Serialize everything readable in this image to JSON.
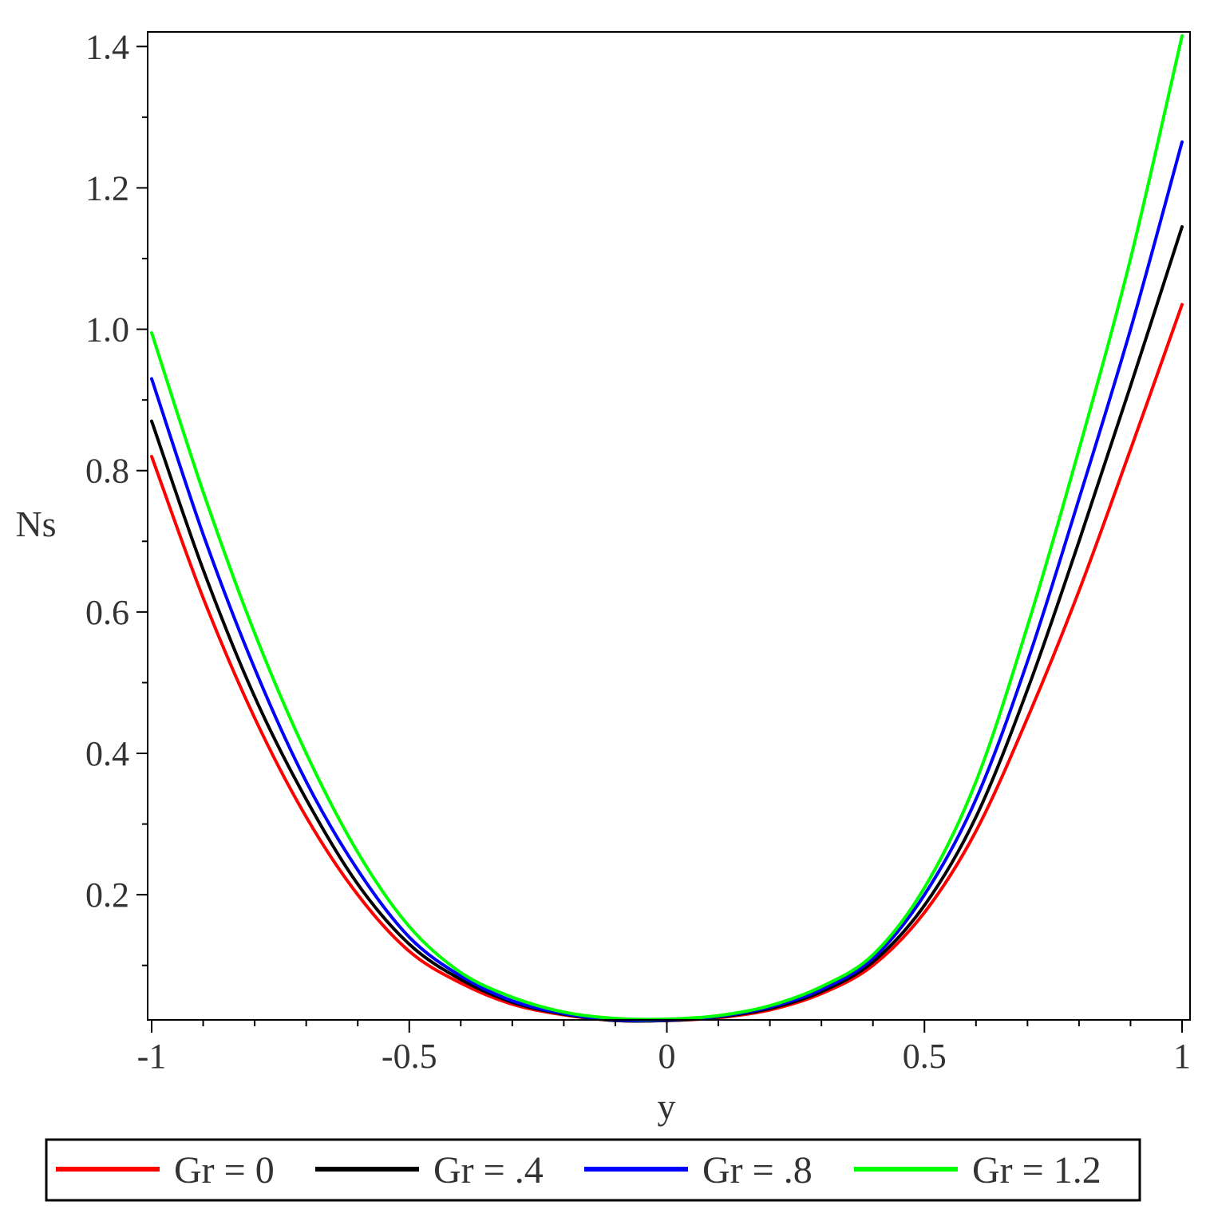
{
  "chart_data": {
    "type": "line",
    "title": "",
    "xlabel": "y",
    "ylabel": "Ns",
    "xlim": [
      -1,
      1
    ],
    "ylim": [
      0.015,
      1.415
    ],
    "grid": false,
    "legend_position": "bottom",
    "x_ticks": [
      {
        "value": -1,
        "label": "-1"
      },
      {
        "value": -0.5,
        "label": "-0.5"
      },
      {
        "value": 0,
        "label": "0"
      },
      {
        "value": 0.5,
        "label": "0.5"
      },
      {
        "value": 1,
        "label": "1"
      }
    ],
    "y_ticks": [
      {
        "value": 0.2,
        "label": "0.2"
      },
      {
        "value": 0.4,
        "label": "0.4"
      },
      {
        "value": 0.6,
        "label": "0.6"
      },
      {
        "value": 0.8,
        "label": "0.8"
      },
      {
        "value": 1.0,
        "label": "1.0"
      },
      {
        "value": 1.2,
        "label": "1.2"
      },
      {
        "value": 1.4,
        "label": "1.4"
      }
    ],
    "x": [
      -1.0,
      -0.9,
      -0.8,
      -0.7,
      -0.6,
      -0.5,
      -0.4,
      -0.3,
      -0.2,
      -0.1,
      0.0,
      0.1,
      0.2,
      0.3,
      0.4,
      0.5,
      0.6,
      0.7,
      0.8,
      0.9,
      1.0
    ],
    "series": [
      {
        "name": "Gr = 0",
        "color": "#ff0000",
        "values": [
          0.82,
          0.62,
          0.45,
          0.31,
          0.2,
          0.12,
          0.075,
          0.045,
          0.03,
          0.022,
          0.022,
          0.026,
          0.037,
          0.06,
          0.1,
          0.175,
          0.29,
          0.45,
          0.63,
          0.83,
          1.035
        ]
      },
      {
        "name": "Gr = .4",
        "color": "#000000",
        "values": [
          0.87,
          0.66,
          0.48,
          0.335,
          0.215,
          0.13,
          0.08,
          0.048,
          0.031,
          0.022,
          0.022,
          0.027,
          0.039,
          0.063,
          0.105,
          0.185,
          0.31,
          0.49,
          0.7,
          0.92,
          1.145
        ]
      },
      {
        "name": "Gr = .8",
        "color": "#0000ff",
        "values": [
          0.93,
          0.71,
          0.52,
          0.36,
          0.235,
          0.14,
          0.085,
          0.05,
          0.032,
          0.023,
          0.023,
          0.028,
          0.041,
          0.066,
          0.11,
          0.2,
          0.335,
          0.53,
          0.76,
          1.0,
          1.265
        ]
      },
      {
        "name": "Gr = 1.2",
        "color": "#00ff00",
        "values": [
          0.995,
          0.77,
          0.57,
          0.4,
          0.26,
          0.155,
          0.09,
          0.055,
          0.034,
          0.025,
          0.024,
          0.029,
          0.043,
          0.07,
          0.115,
          0.21,
          0.36,
          0.58,
          0.83,
          1.1,
          1.415
        ]
      }
    ]
  }
}
